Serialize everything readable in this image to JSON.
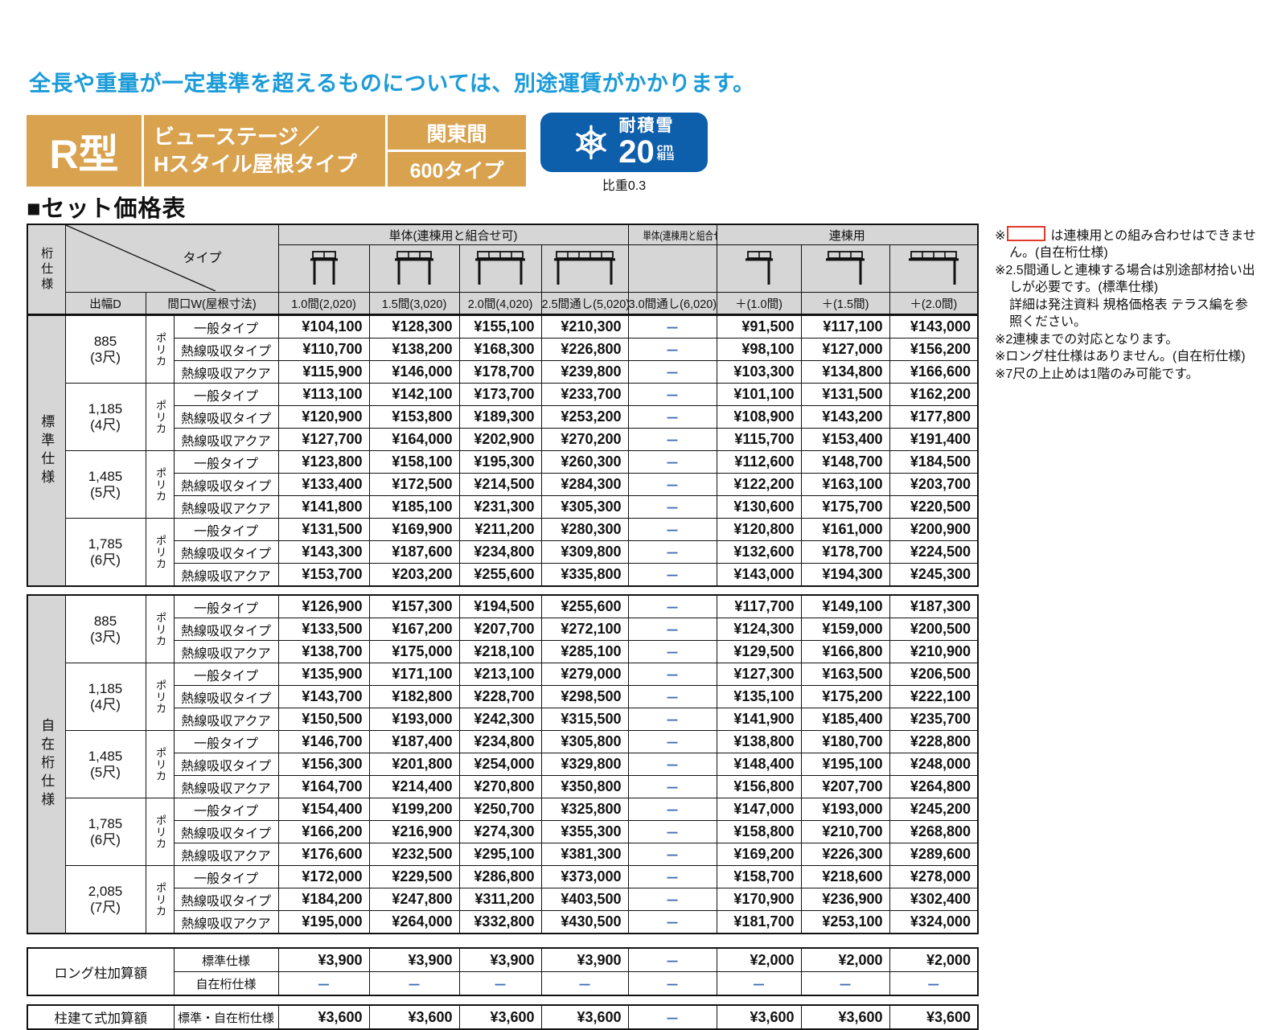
{
  "page": {
    "shipping_note": "全長や重量が一定基準を超えるものについては、別途運賃がかかります。",
    "section_title": "■セット価格表"
  },
  "product": {
    "model": "R型",
    "name_line1": "ビューステージ／",
    "name_line2": "Hスタイル屋根タイプ",
    "module": "関東間",
    "size_type": "600タイプ",
    "snow_badge": {
      "label": "耐積雪",
      "value": "20",
      "unit": "cm",
      "unit_suffix": "相当",
      "note": "比重0.3"
    }
  },
  "colors": {
    "accent_orange": "#d8a24f",
    "header_gray": "#d6d6d6",
    "note_blue": "#1b9bd8",
    "badge_blue": "#0d5eab",
    "highlight_red": "#e03a2b"
  },
  "table": {
    "corner_label": "桁仕様",
    "type_label": "タイプ",
    "depth_label": "出幅D",
    "width_label": "間口W(屋根寸法)",
    "groups": {
      "single_ok": "単体(連棟用と組合せ可)",
      "single_ng": "単体(連棟用と組合せ不可)",
      "rento": "連棟用"
    },
    "columns": [
      "1.0間(2,020)",
      "1.5間(3,020)",
      "2.0間(4,020)",
      "2.5間通し(5,020)",
      "3.0間通し(6,020)",
      "＋(1.0間)",
      "＋(1.5間)",
      "＋(2.0間)"
    ],
    "diagrams": [
      {
        "name": "pergola-single-1-0-icon",
        "panels": 2,
        "connector": false
      },
      {
        "name": "pergola-single-1-5-icon",
        "panels": 3,
        "connector": false
      },
      {
        "name": "pergola-single-2-0-icon",
        "panels": 4,
        "connector": false
      },
      {
        "name": "pergola-single-2-5-icon",
        "panels": 5,
        "connector": false
      },
      null,
      {
        "name": "pergola-rento-1-0-icon",
        "panels": 2,
        "connector": true
      },
      {
        "name": "pergola-rento-1-5-icon",
        "panels": 3,
        "connector": true
      },
      {
        "name": "pergola-rento-2-0-icon",
        "panels": 4,
        "connector": true
      }
    ],
    "blocks": [
      {
        "spec": "標準仕様",
        "groups": [
          {
            "depth": "885",
            "depth_sub": "(3尺)",
            "material": "ポリカ",
            "rows": [
              {
                "type": "一般タイプ",
                "prices": [
                  "¥104,100",
                  "¥128,300",
                  "¥155,100",
                  "¥210,300",
                  "－",
                  "¥91,500",
                  "¥117,100",
                  "¥143,000"
                ]
              },
              {
                "type": "熱線吸収タイプ",
                "prices": [
                  "¥110,700",
                  "¥138,200",
                  "¥168,300",
                  "¥226,800",
                  "－",
                  "¥98,100",
                  "¥127,000",
                  "¥156,200"
                ]
              },
              {
                "type": "熱線吸収アクア",
                "prices": [
                  "¥115,900",
                  "¥146,000",
                  "¥178,700",
                  "¥239,800",
                  "－",
                  "¥103,300",
                  "¥134,800",
                  "¥166,600"
                ]
              }
            ]
          },
          {
            "depth": "1,185",
            "depth_sub": "(4尺)",
            "material": "ポリカ",
            "rows": [
              {
                "type": "一般タイプ",
                "prices": [
                  "¥113,100",
                  "¥142,100",
                  "¥173,700",
                  "¥233,700",
                  "－",
                  "¥101,100",
                  "¥131,500",
                  "¥162,200"
                ]
              },
              {
                "type": "熱線吸収タイプ",
                "prices": [
                  "¥120,900",
                  "¥153,800",
                  "¥189,300",
                  "¥253,200",
                  "－",
                  "¥108,900",
                  "¥143,200",
                  "¥177,800"
                ]
              },
              {
                "type": "熱線吸収アクア",
                "prices": [
                  "¥127,700",
                  "¥164,000",
                  "¥202,900",
                  "¥270,200",
                  "－",
                  "¥115,700",
                  "¥153,400",
                  "¥191,400"
                ]
              }
            ]
          },
          {
            "depth": "1,485",
            "depth_sub": "(5尺)",
            "material": "ポリカ",
            "rows": [
              {
                "type": "一般タイプ",
                "prices": [
                  "¥123,800",
                  "¥158,100",
                  "¥195,300",
                  "¥260,300",
                  "－",
                  "¥112,600",
                  "¥148,700",
                  "¥184,500"
                ]
              },
              {
                "type": "熱線吸収タイプ",
                "prices": [
                  "¥133,400",
                  "¥172,500",
                  "¥214,500",
                  "¥284,300",
                  "－",
                  "¥122,200",
                  "¥163,100",
                  "¥203,700"
                ]
              },
              {
                "type": "熱線吸収アクア",
                "prices": [
                  "¥141,800",
                  "¥185,100",
                  "¥231,300",
                  "¥305,300",
                  "－",
                  "¥130,600",
                  "¥175,700",
                  "¥220,500"
                ]
              }
            ]
          },
          {
            "depth": "1,785",
            "depth_sub": "(6尺)",
            "material": "ポリカ",
            "rows": [
              {
                "type": "一般タイプ",
                "prices": [
                  "¥131,500",
                  "¥169,900",
                  "¥211,200",
                  "¥280,300",
                  "－",
                  "¥120,800",
                  "¥161,000",
                  "¥200,900"
                ]
              },
              {
                "type": "熱線吸収タイプ",
                "prices": [
                  "¥143,300",
                  "¥187,600",
                  "¥234,800",
                  "¥309,800",
                  "－",
                  "¥132,600",
                  "¥178,700",
                  "¥224,500"
                ]
              },
              {
                "type": "熱線吸収アクア",
                "prices": [
                  "¥153,700",
                  "¥203,200",
                  "¥255,600",
                  "¥335,800",
                  "－",
                  "¥143,000",
                  "¥194,300",
                  "¥245,300"
                ]
              }
            ]
          }
        ]
      },
      {
        "spec": "自在桁仕様",
        "groups": [
          {
            "depth": "885",
            "depth_sub": "(3尺)",
            "material": "ポリカ",
            "rows": [
              {
                "type": "一般タイプ",
                "prices": [
                  "¥126,900",
                  "¥157,300",
                  "¥194,500",
                  "¥255,600",
                  "－",
                  "¥117,700",
                  "¥149,100",
                  "¥187,300"
                ]
              },
              {
                "type": "熱線吸収タイプ",
                "prices": [
                  "¥133,500",
                  "¥167,200",
                  "¥207,700",
                  "¥272,100",
                  "－",
                  "¥124,300",
                  "¥159,000",
                  "¥200,500"
                ]
              },
              {
                "type": "熱線吸収アクア",
                "prices": [
                  "¥138,700",
                  "¥175,000",
                  "¥218,100",
                  "¥285,100",
                  "－",
                  "¥129,500",
                  "¥166,800",
                  "¥210,900"
                ]
              }
            ]
          },
          {
            "depth": "1,185",
            "depth_sub": "(4尺)",
            "material": "ポリカ",
            "rows": [
              {
                "type": "一般タイプ",
                "prices": [
                  "¥135,900",
                  "¥171,100",
                  "¥213,100",
                  "¥279,000",
                  "－",
                  "¥127,300",
                  "¥163,500",
                  "¥206,500"
                ]
              },
              {
                "type": "熱線吸収タイプ",
                "prices": [
                  "¥143,700",
                  "¥182,800",
                  "¥228,700",
                  "¥298,500",
                  "－",
                  "¥135,100",
                  "¥175,200",
                  "¥222,100"
                ]
              },
              {
                "type": "熱線吸収アクア",
                "prices": [
                  "¥150,500",
                  "¥193,000",
                  "¥242,300",
                  "¥315,500",
                  "－",
                  "¥141,900",
                  "¥185,400",
                  "¥235,700"
                ]
              }
            ]
          },
          {
            "depth": "1,485",
            "depth_sub": "(5尺)",
            "material": "ポリカ",
            "rows": [
              {
                "type": "一般タイプ",
                "prices": [
                  "¥146,700",
                  "¥187,400",
                  "¥234,800",
                  "¥305,800",
                  "－",
                  "¥138,800",
                  "¥180,700",
                  "¥228,800"
                ]
              },
              {
                "type": "熱線吸収タイプ",
                "prices": [
                  "¥156,300",
                  "¥201,800",
                  "¥254,000",
                  "¥329,800",
                  "－",
                  "¥148,400",
                  "¥195,100",
                  "¥248,000"
                ]
              },
              {
                "type": "熱線吸収アクア",
                "prices": [
                  "¥164,700",
                  "¥214,400",
                  "¥270,800",
                  "¥350,800",
                  "－",
                  "¥156,800",
                  "¥207,700",
                  "¥264,800"
                ]
              }
            ]
          },
          {
            "depth": "1,785",
            "depth_sub": "(6尺)",
            "material": "ポリカ",
            "rows": [
              {
                "type": "一般タイプ",
                "prices": [
                  "¥154,400",
                  "¥199,200",
                  "¥250,700",
                  "¥325,800",
                  "－",
                  "¥147,000",
                  "¥193,000",
                  "¥245,200"
                ]
              },
              {
                "type": "熱線吸収タイプ",
                "prices": [
                  "¥166,200",
                  "¥216,900",
                  "¥274,300",
                  "¥355,300",
                  "－",
                  "¥158,800",
                  "¥210,700",
                  "¥268,800"
                ]
              },
              {
                "type": "熱線吸収アクア",
                "prices": [
                  "¥176,600",
                  "¥232,500",
                  "¥295,100",
                  "¥381,300",
                  "－",
                  "¥169,200",
                  "¥226,300",
                  "¥289,600"
                ]
              }
            ]
          },
          {
            "depth": "2,085",
            "depth_sub": "(7尺)",
            "material": "ポリカ",
            "rows": [
              {
                "type": "一般タイプ",
                "prices": [
                  "¥172,000",
                  "¥229,500",
                  "¥286,800",
                  "¥373,000",
                  "－",
                  "¥158,700",
                  "¥218,600",
                  "¥278,000"
                ]
              },
              {
                "type": "熱線吸収タイプ",
                "prices": [
                  "¥184,200",
                  "¥247,800",
                  "¥311,200",
                  "¥403,500",
                  "－",
                  "¥170,900",
                  "¥236,900",
                  "¥302,400"
                ]
              },
              {
                "type": "熱線吸収アクア",
                "prices": [
                  "¥195,000",
                  "¥264,000",
                  "¥332,800",
                  "¥430,500",
                  "－",
                  "¥181,700",
                  "¥253,100",
                  "¥324,000"
                ]
              }
            ]
          }
        ]
      }
    ],
    "highlights": [
      {
        "block": 1,
        "col": 4,
        "row_start": 0,
        "row_end": 14
      },
      {
        "block": 1,
        "col": 3,
        "row_start": 12,
        "row_end": 14
      }
    ],
    "addons": [
      {
        "label": "ロング柱加算額",
        "rows": [
          {
            "spec": "標準仕様",
            "prices": [
              "¥3,900",
              "¥3,900",
              "¥3,900",
              "¥3,900",
              "－",
              "¥2,000",
              "¥2,000",
              "¥2,000"
            ]
          },
          {
            "spec": "自在桁仕様",
            "prices": [
              "－",
              "－",
              "－",
              "－",
              "－",
              "－",
              "－",
              "－"
            ]
          }
        ]
      },
      {
        "label": "柱建て式加算額",
        "rows": [
          {
            "spec": "標準・自在桁仕様",
            "prices": [
              "¥3,600",
              "¥3,600",
              "¥3,600",
              "¥3,600",
              "－",
              "¥3,600",
              "¥3,600",
              "¥3,600"
            ]
          }
        ]
      }
    ]
  },
  "notes": [
    {
      "box": true,
      "text": "は連棟用との組み合わせはできません。(自在桁仕様)"
    },
    {
      "text": "2.5間通しと連棟する場合は別途部材拾い出しが必要です。(標準仕様)"
    },
    {
      "cont": true,
      "text": "詳細は発注資料 規格価格表 テラス編を参照ください。"
    },
    {
      "text": "2連棟までの対応となります。"
    },
    {
      "text": "ロング柱仕様はありません。(自在桁仕様)"
    },
    {
      "text": "7尺の上止めは1階のみ可能です。"
    }
  ]
}
